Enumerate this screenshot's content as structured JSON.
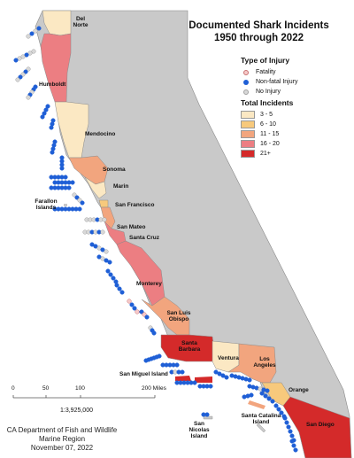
{
  "title_line1": "Documented Shark Incidents",
  "title_line2": "1950 through 2022",
  "legend": {
    "injury_heading": "Type of Injury",
    "injury_types": [
      {
        "label": "Fatality",
        "fill": "#f6c9c9",
        "stroke": "#c87070"
      },
      {
        "label": "Non-fatal Injury",
        "fill": "#1f5fd6",
        "stroke": "#1f5fd6"
      },
      {
        "label": "No Injury",
        "fill": "#d8d8d8",
        "stroke": "#a0a0a0"
      }
    ],
    "total_heading": "Total Incidents",
    "total_classes": [
      {
        "label": "3 - 5",
        "color": "#fbe8c3"
      },
      {
        "label": "6 - 10",
        "color": "#f7c97c"
      },
      {
        "label": "11 - 15",
        "color": "#f2a57e"
      },
      {
        "label": "16 - 20",
        "color": "#ec7e82"
      },
      {
        "label": "21+",
        "color": "#d42a2a"
      }
    ]
  },
  "labels": {
    "del_norte": "Del Norte",
    "humboldt": "Humboldt",
    "mendocino": "Mendocino",
    "sonoma": "Sonoma",
    "marin": "Marin",
    "farallon": "Farallon Islands",
    "san_francisco": "San Francisco",
    "san_mateo": "San Mateo",
    "santa_cruz": "Santa Cruz",
    "monterey": "Monterey",
    "slo": "San Luis Obispo",
    "santa_barbara": "Santa Barbara",
    "ventura": "Ventura",
    "los_angeles": "Los Angeles",
    "orange": "Orange",
    "san_miguel": "San Miguel Island",
    "san_nicolas": "San Nicolas Island",
    "santa_catalina": "Santa Catalina Island",
    "san_diego": "San Diego"
  },
  "scale": {
    "ticks": [
      "0",
      "50",
      "100",
      "200 Miles"
    ],
    "ratio": "1:3,925,000"
  },
  "credit": {
    "line1": "CA Department of Fish and Wildlife",
    "line2": "Marine Region",
    "line3": "November 07, 2022"
  },
  "colors": {
    "land": "#c9c9c9",
    "outline": "#8a8a8a",
    "background": "#ffffff"
  }
}
